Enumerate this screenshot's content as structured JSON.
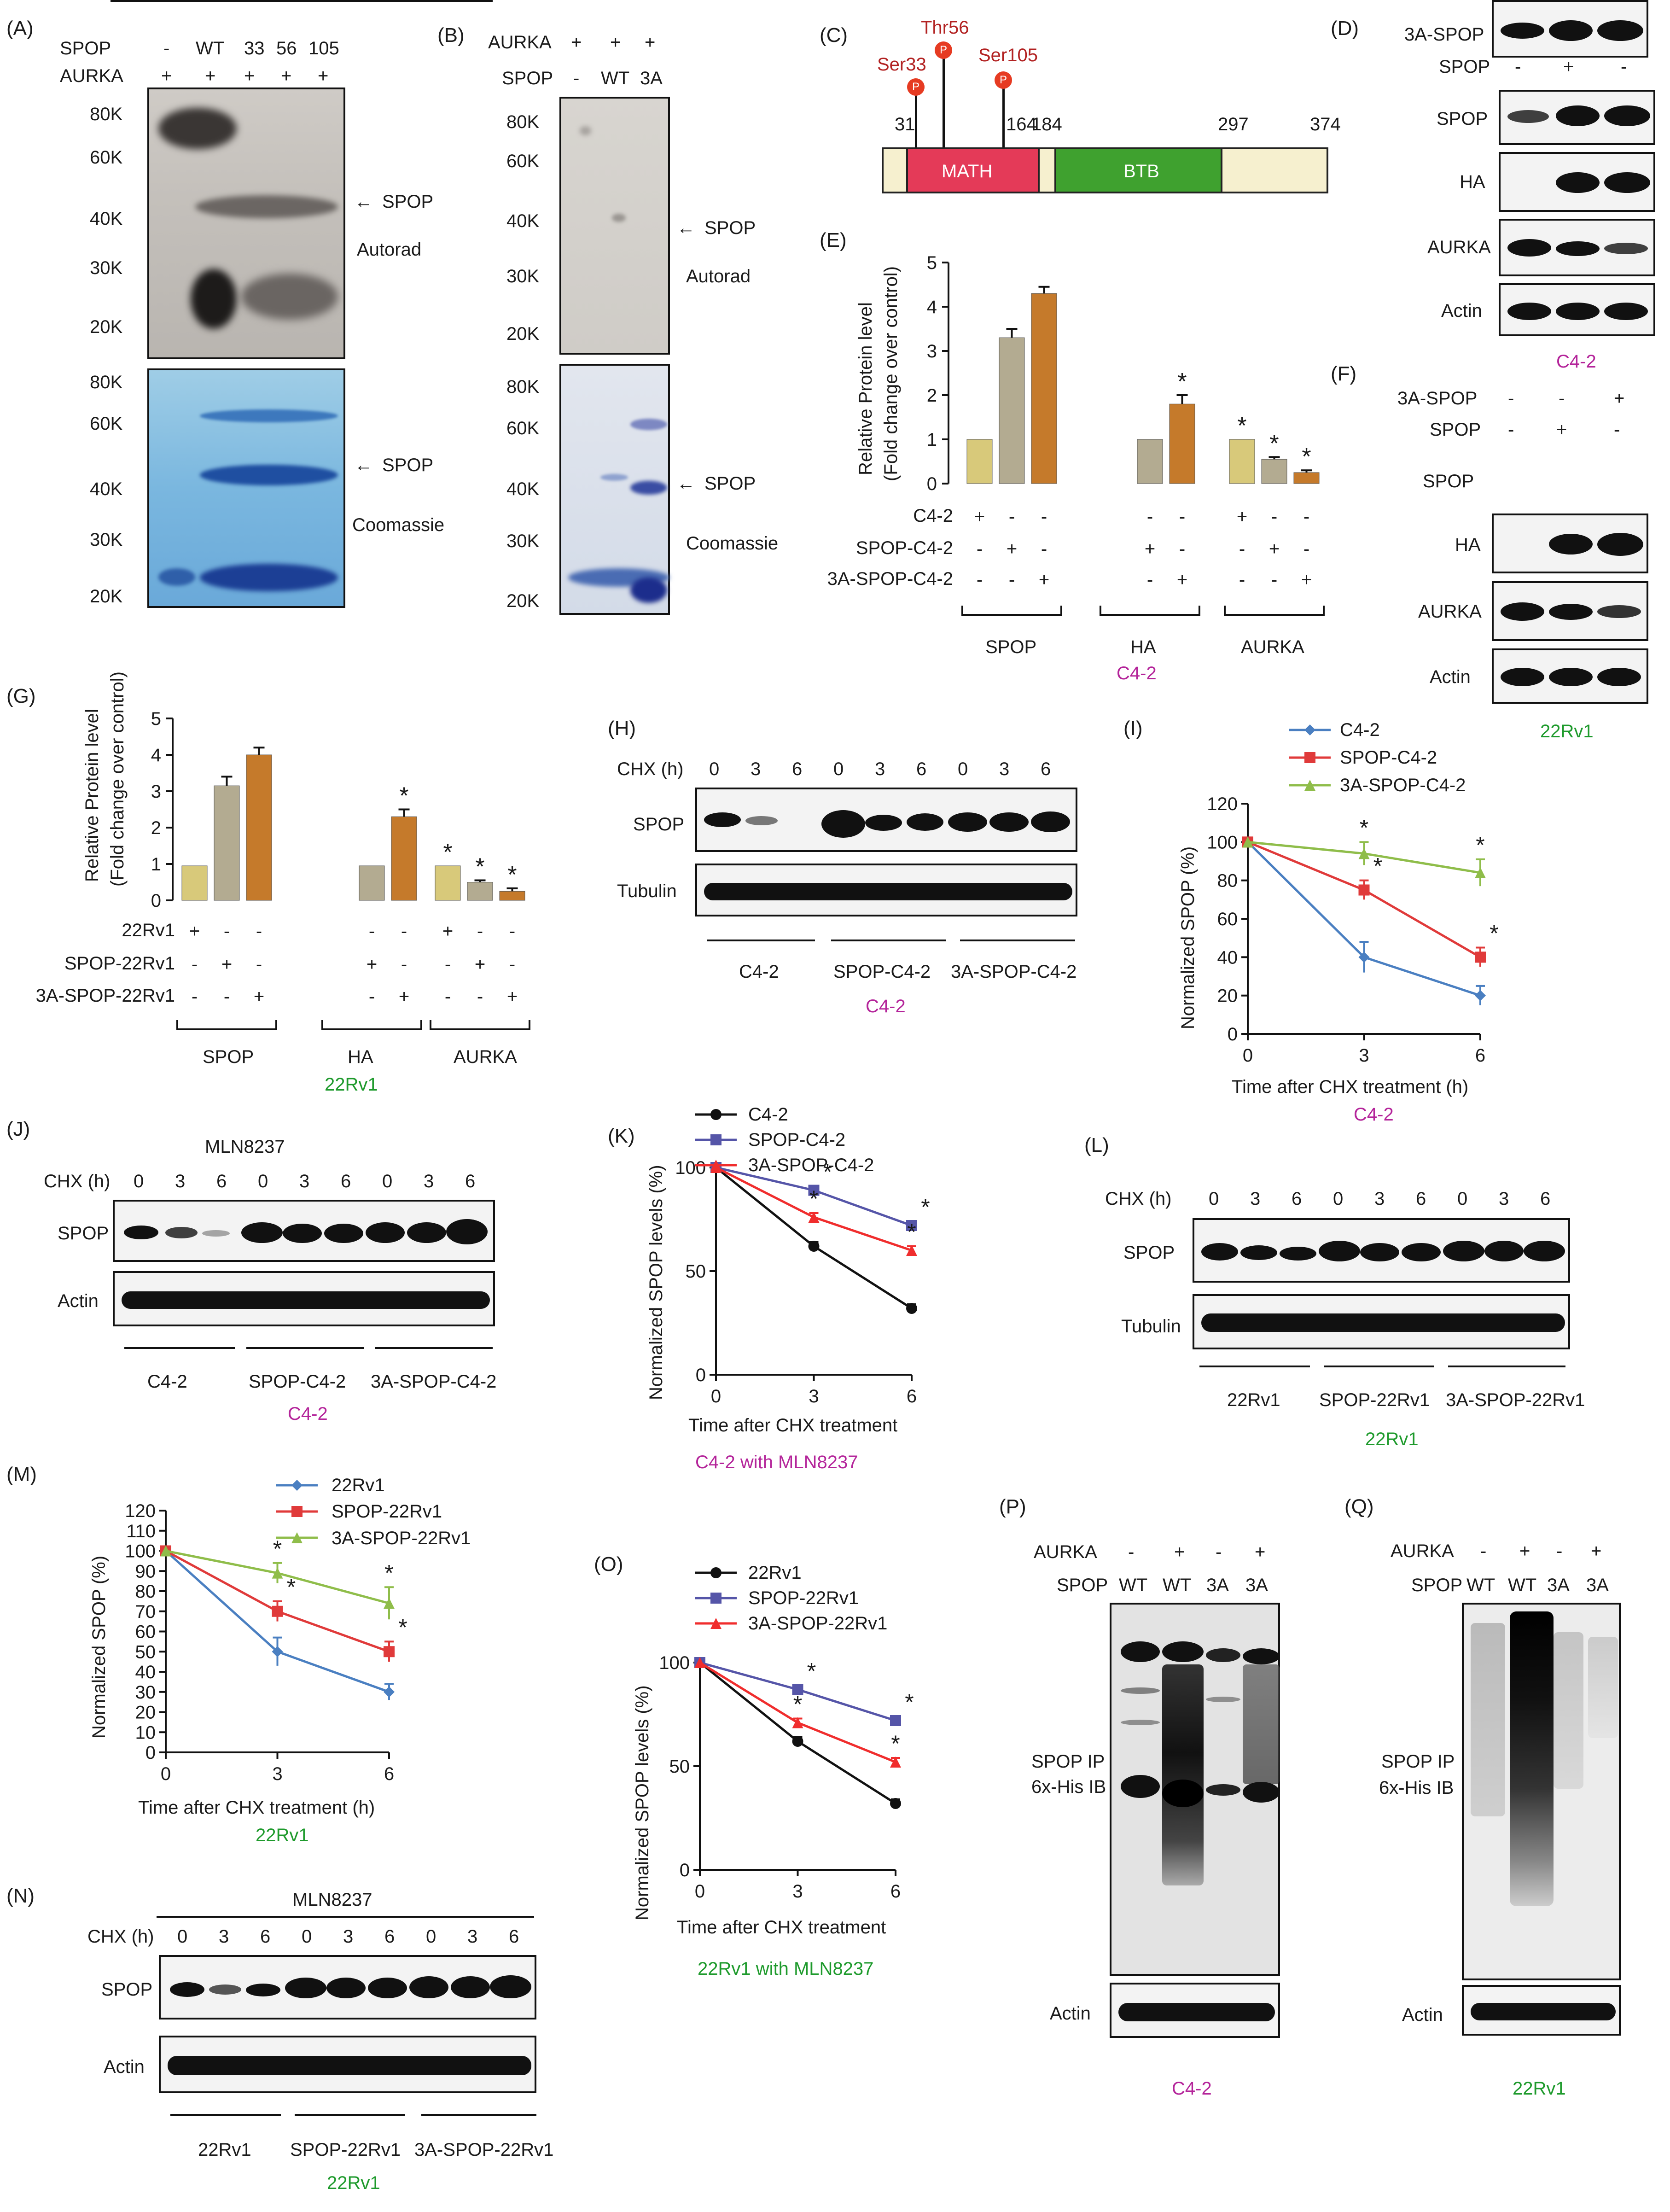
{
  "panel_labels": {
    "A": "(A)",
    "B": "(B)",
    "C": "(C)",
    "D": "(D)",
    "E": "(E)",
    "F": "(F)",
    "G": "(G)",
    "H": "(H)",
    "I": "(I)",
    "J": "(J)",
    "K": "(K)",
    "L": "(L)",
    "M": "(M)",
    "N": "(N)",
    "O": "(O)",
    "P": "(P)",
    "Q": "(Q)"
  },
  "common": {
    "spop": "SPOP",
    "aurka": "AURKA",
    "actin": "Actin",
    "tubulin": "Tubulin",
    "ha": "HA",
    "plus": "+",
    "minus": "-",
    "arrow_spop": "SPOP",
    "autorad": "Autorad",
    "coomassie": "Coomassie",
    "star": "*",
    "c42": "C4-2",
    "rv1": "22Rv1",
    "mln": "MLN8237",
    "chx": "CHX (h)",
    "spop_ip": "SPOP IP",
    "his_ib": "6x-His IB",
    "three_a_spop": "3A-SPOP"
  },
  "panelA": {
    "spop_lanes": [
      "-",
      "WT",
      "33",
      "56",
      "105"
    ],
    "aurka_lanes": [
      "+",
      "+",
      "+",
      "+",
      "+"
    ],
    "markers_top": [
      "80K",
      "60K",
      "40K",
      "30K",
      "20K"
    ],
    "markers_bottom": [
      "80K",
      "60K",
      "40K",
      "30K",
      "20K"
    ]
  },
  "panelB": {
    "aurka_lanes": [
      "+",
      "+",
      "+"
    ],
    "spop_lanes": [
      "-",
      "WT",
      "3A"
    ],
    "markers_top": [
      "80K",
      "60K",
      "40K",
      "30K",
      "20K"
    ],
    "markers_bottom": [
      "80K",
      "60K",
      "40K",
      "30K",
      "20K"
    ]
  },
  "panelC": {
    "sites": [
      "Ser33",
      "Thr56",
      "Ser105"
    ],
    "p": "P",
    "positions": [
      "31",
      "164",
      "184",
      "297",
      "374"
    ],
    "math": "MATH",
    "btb": "BTB"
  },
  "panelD": {
    "row1": [
      "-",
      "-",
      "+"
    ],
    "row2": [
      "-",
      "+",
      "-"
    ],
    "cell": "C4-2"
  },
  "panelF": {
    "row1": [
      "-",
      "-",
      "+"
    ],
    "row2": [
      "-",
      "+",
      "-"
    ],
    "cell": "22Rv1"
  },
  "panelE": {
    "ylabel1": "Relative Protein level",
    "ylabel2": "(Fold change over control)",
    "yticks": [
      "0",
      "1",
      "2",
      "3",
      "4",
      "5"
    ],
    "rows": [
      "C4-2",
      "SPOP-C4-2",
      "3A-SPOP-C4-2"
    ],
    "cell": "C4-2"
  },
  "panelG": {
    "ylabel1": "Relative Protein level",
    "ylabel2": "(Fold change over control)",
    "yticks": [
      "0",
      "1",
      "2",
      "3",
      "4"
    ],
    "rows": [
      "22Rv1",
      "SPOP-22Rv1",
      "3A-SPOP-22Rv1"
    ],
    "cell": "22Rv1"
  },
  "groups": {
    "spop": "SPOP",
    "ha": "HA",
    "aurka": "AURKA"
  },
  "times": [
    "0",
    "3",
    "6",
    "0",
    "3",
    "6",
    "0",
    "3",
    "6"
  ],
  "panelH": {
    "groups": [
      "C4-2",
      "SPOP-C4-2",
      "3A-SPOP-C4-2"
    ],
    "cell": "C4-2"
  },
  "panelJ": {
    "groups": [
      "C4-2",
      "SPOP-C4-2",
      "3A-SPOP-C4-2"
    ],
    "cell": "C4-2"
  },
  "panelL": {
    "groups": [
      "22Rv1",
      "SPOP-22Rv1",
      "3A-SPOP-22Rv1"
    ],
    "cell": "22Rv1"
  },
  "panelN": {
    "groups": [
      "22Rv1",
      "SPOP-22Rv1",
      "3A-SPOP-22Rv1"
    ],
    "cell": "22Rv1"
  },
  "panelI": {
    "ylabel": "Normalized SPOP (%)",
    "xlabel": "Time after CHX treatment (h)",
    "legend": [
      "C4-2",
      "SPOP-C4-2",
      "3A-SPOP-C4-2"
    ],
    "cell": "C4-2"
  },
  "panelK": {
    "ylabel": "Normalized SPOP levels (%)",
    "xlabel": "Time after CHX treatment",
    "legend": [
      "C4-2",
      "SPOP-C4-2",
      "3A-SPOP-C4-2"
    ],
    "caption": "C4-2 with MLN8237"
  },
  "panelM": {
    "ylabel": "Normalized SPOP (%)",
    "xlabel": "Time after CHX treatment (h)",
    "legend": [
      "22Rv1",
      "SPOP-22Rv1",
      "3A-SPOP-22Rv1"
    ],
    "cell": "22Rv1"
  },
  "panelO": {
    "ylabel": "Normalized SPOP levels (%)",
    "xlabel": "Time after CHX treatment",
    "legend": [
      "22Rv1",
      "SPOP-22Rv1",
      "3A-SPOP-22Rv1"
    ],
    "caption": "22Rv1 with MLN8237"
  },
  "panelP": {
    "aurka_lanes": [
      "-",
      "+",
      "-",
      "+"
    ],
    "spop_lanes": [
      "WT",
      "WT",
      "3A",
      "3A"
    ],
    "cell": "C4-2"
  },
  "panelQ": {
    "aurka_lanes": [
      "-",
      "+",
      "-",
      "+"
    ],
    "spop_lanes": [
      "WT",
      "WT",
      "3A",
      "3A"
    ],
    "cell": "22Rv1"
  },
  "chart_data": [
    {
      "id": "E",
      "type": "bar",
      "ylim": [
        0,
        5
      ],
      "groups": [
        "SPOP",
        "HA",
        "AURKA"
      ],
      "series": [
        {
          "values": [
            1,
            null,
            1
          ],
          "errors": [
            0,
            null,
            0
          ],
          "color": "#d8c97a"
        },
        {
          "values": [
            3.3,
            1,
            0.55
          ],
          "errors": [
            0.2,
            0,
            0.05
          ],
          "color": "#b3ab91"
        },
        {
          "values": [
            4.3,
            1.8,
            0.25
          ],
          "errors": [
            0.15,
            0.2,
            0.05
          ],
          "color": "#c57a2b"
        }
      ],
      "significant": [
        [
          false,
          true,
          true
        ],
        [
          false,
          false,
          true
        ],
        [
          false,
          true,
          true
        ]
      ]
    },
    {
      "id": "G",
      "type": "bar",
      "ylim": [
        0,
        5
      ],
      "groups": [
        "SPOP",
        "HA",
        "AURKA"
      ],
      "series": [
        {
          "values": [
            0.95,
            null,
            0.95
          ],
          "errors": [
            0,
            null,
            0
          ],
          "color": "#d8c97a"
        },
        {
          "values": [
            3.15,
            0.95,
            0.5
          ],
          "errors": [
            0.25,
            0,
            0.05
          ],
          "color": "#b3ab91"
        },
        {
          "values": [
            4.0,
            2.3,
            0.25
          ],
          "errors": [
            0.2,
            0.2,
            0.08
          ],
          "color": "#c57a2b"
        }
      ],
      "significant": [
        [
          false,
          true,
          true
        ],
        [
          false,
          false,
          true
        ],
        [
          false,
          true,
          true
        ]
      ]
    },
    {
      "id": "I",
      "type": "line",
      "x": [
        0,
        3,
        6
      ],
      "xlim": [
        0,
        6
      ],
      "ylim": [
        0,
        120
      ],
      "yticks": [
        0,
        20,
        40,
        60,
        80,
        100,
        120
      ],
      "series": [
        {
          "name": "C4-2",
          "values": [
            100,
            40,
            20
          ],
          "errors": [
            0,
            8,
            5
          ],
          "color": "#4a7fc1",
          "marker": "diamond"
        },
        {
          "name": "SPOP-C4-2",
          "values": [
            100,
            75,
            40
          ],
          "errors": [
            0,
            5,
            5
          ],
          "color": "#e03a3a",
          "marker": "square"
        },
        {
          "name": "3A-SPOP-C4-2",
          "values": [
            100,
            94,
            84
          ],
          "errors": [
            0,
            6,
            7
          ],
          "color": "#8fbd4a",
          "marker": "triangle"
        }
      ]
    },
    {
      "id": "K",
      "type": "line",
      "x": [
        0,
        3,
        6
      ],
      "xlim": [
        0,
        6
      ],
      "ylim": [
        0,
        100
      ],
      "yticks": [
        0,
        50,
        100
      ],
      "series": [
        {
          "name": "C4-2",
          "values": [
            100,
            62,
            32
          ],
          "errors": [
            0,
            2,
            2
          ],
          "color": "#111111",
          "marker": "circle"
        },
        {
          "name": "SPOP-C4-2",
          "values": [
            100,
            89,
            72
          ],
          "errors": [
            0,
            2,
            2
          ],
          "color": "#5555a8",
          "marker": "square"
        },
        {
          "name": "3A-SPOP-C4-2",
          "values": [
            100,
            76,
            60
          ],
          "errors": [
            0,
            2,
            2
          ],
          "color": "#f02d2d",
          "marker": "triangle"
        }
      ]
    },
    {
      "id": "M",
      "type": "line",
      "x": [
        0,
        3,
        6
      ],
      "xlim": [
        0,
        6
      ],
      "ylim": [
        0,
        120
      ],
      "yticks": [
        0,
        10,
        20,
        30,
        40,
        50,
        60,
        70,
        80,
        90,
        100,
        110,
        120
      ],
      "series": [
        {
          "name": "22Rv1",
          "values": [
            100,
            50,
            30
          ],
          "errors": [
            0,
            7,
            4
          ],
          "color": "#4a7fc1",
          "marker": "diamond"
        },
        {
          "name": "SPOP-22Rv1",
          "values": [
            100,
            70,
            50
          ],
          "errors": [
            0,
            5,
            5
          ],
          "color": "#e03a3a",
          "marker": "square"
        },
        {
          "name": "3A-SPOP-22Rv1",
          "values": [
            100,
            89,
            74
          ],
          "errors": [
            0,
            5,
            8
          ],
          "color": "#8fbd4a",
          "marker": "triangle"
        }
      ]
    },
    {
      "id": "O",
      "type": "line",
      "x": [
        0,
        3,
        6
      ],
      "xlim": [
        0,
        6
      ],
      "ylim": [
        0,
        100
      ],
      "yticks": [
        0,
        50,
        100
      ],
      "series": [
        {
          "name": "22Rv1",
          "values": [
            100,
            62,
            32
          ],
          "errors": [
            0,
            2,
            2
          ],
          "color": "#111111",
          "marker": "circle"
        },
        {
          "name": "SPOP-22Rv1",
          "values": [
            100,
            87,
            72
          ],
          "errors": [
            0,
            2,
            2
          ],
          "color": "#5555a8",
          "marker": "square"
        },
        {
          "name": "3A-SPOP-22Rv1",
          "values": [
            100,
            71,
            52
          ],
          "errors": [
            0,
            2,
            2
          ],
          "color": "#f02d2d",
          "marker": "triangle"
        }
      ]
    }
  ]
}
